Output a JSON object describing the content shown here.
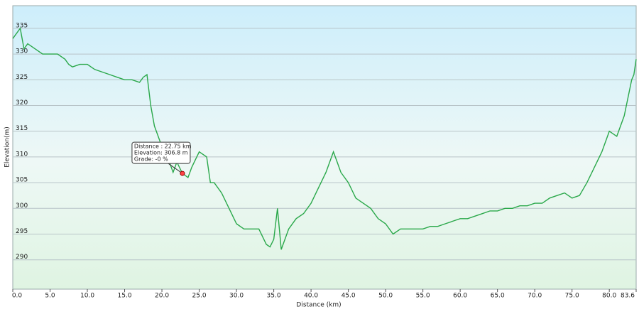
{
  "chart_data": {
    "type": "line",
    "x_label": "Distance  (km)",
    "y_label": "Elevation(m)",
    "xlim": [
      0,
      83.6
    ],
    "ylim": [
      284.3,
      339.4
    ],
    "xticks": [
      {
        "value": 0,
        "label": "0.0"
      },
      {
        "value": 5,
        "label": "5.0"
      },
      {
        "value": 10,
        "label": "10.0"
      },
      {
        "value": 15,
        "label": "15.0"
      },
      {
        "value": 20,
        "label": "20.0"
      },
      {
        "value": 25,
        "label": "25.0"
      },
      {
        "value": 30,
        "label": "30.0"
      },
      {
        "value": 35,
        "label": "35.0"
      },
      {
        "value": 40,
        "label": "40.0"
      },
      {
        "value": 45,
        "label": "45.0"
      },
      {
        "value": 50,
        "label": "50.0"
      },
      {
        "value": 55,
        "label": "55.0"
      },
      {
        "value": 60,
        "label": "60.0"
      },
      {
        "value": 65,
        "label": "65.0"
      },
      {
        "value": 70,
        "label": "70.0"
      },
      {
        "value": 75,
        "label": "75.0"
      },
      {
        "value": 80,
        "label": "80.0"
      },
      83.6
    ],
    "yticks": [
      290,
      295,
      300,
      305,
      310,
      315,
      320,
      325,
      330,
      335
    ],
    "grid": true,
    "series": [
      {
        "color": "#2aa84a",
        "x": [
          0,
          1,
          1.5,
          2,
          3,
          4,
          5,
          6,
          7,
          7.5,
          8,
          9,
          10,
          11,
          12,
          13,
          14,
          15,
          16,
          17,
          17.5,
          18,
          18.5,
          19,
          19.5,
          20,
          21,
          21.5,
          22,
          22.75,
          23.5,
          24,
          25,
          26,
          26.5,
          27,
          28,
          29,
          30,
          31,
          32,
          33,
          34,
          34.5,
          35,
          35.5,
          36,
          37,
          38,
          39,
          40,
          41,
          42,
          43,
          43.5,
          44,
          45,
          46,
          47,
          48,
          49,
          50,
          51,
          52,
          53,
          54,
          55,
          56,
          57,
          58,
          59,
          60,
          61,
          62,
          63,
          64,
          65,
          66,
          67,
          68,
          69,
          70,
          71,
          72,
          73,
          74,
          75,
          76,
          77,
          78,
          79,
          80,
          81,
          82,
          83,
          83.3,
          83.6
        ],
        "values": [
          333,
          335,
          331,
          332,
          331,
          330,
          330,
          330,
          329,
          328,
          327.5,
          328,
          328,
          327,
          326.5,
          326,
          325.5,
          325,
          325,
          324.5,
          325.5,
          326,
          320,
          316,
          314,
          312,
          309,
          307,
          309,
          306.8,
          306,
          308,
          311,
          310,
          305,
          305,
          303,
          300,
          297,
          296,
          296,
          296,
          293,
          292.5,
          294,
          300,
          292,
          296,
          298,
          299,
          301,
          304,
          307,
          311,
          309,
          307,
          305,
          302,
          301,
          300,
          298,
          297,
          295,
          296,
          296,
          296,
          296,
          296.5,
          296.5,
          297,
          297.5,
          298,
          298,
          298.5,
          299,
          299.5,
          299.5,
          300,
          300,
          300.5,
          300.5,
          301,
          301,
          302,
          302.5,
          303,
          302,
          302.5,
          305,
          308,
          311,
          315,
          314,
          318,
          325,
          326,
          329
        ]
      }
    ],
    "tooltip": {
      "x": 22.75,
      "y": 306.8,
      "lines": [
        "Distance : 22.75 km",
        "Elevation: 306.8 m",
        "Grade: -0 %"
      ]
    }
  }
}
